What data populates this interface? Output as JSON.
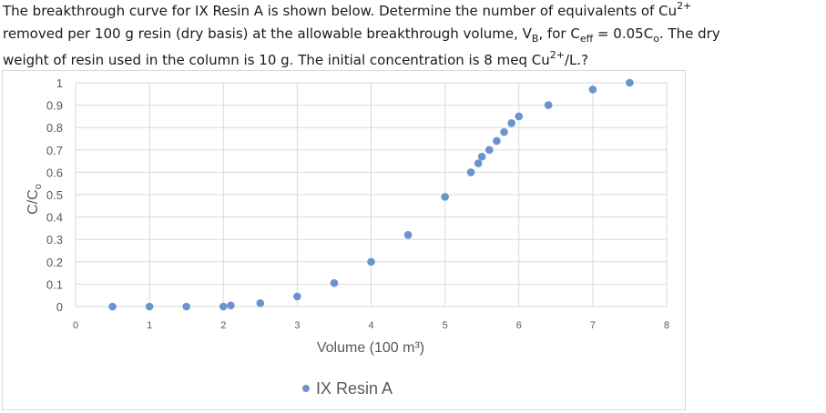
{
  "question": {
    "line1_pre": "The breakthrough curve for IX Resin A is shown below. Determine the number of equivalents of Cu",
    "line1_sup": "2+",
    "line2_pre": "removed per 100 g resin (dry basis) at the allowable breakthrough volume, V",
    "line2_sub1": "B",
    "line2_mid": ", for C",
    "line2_sub2": "eff",
    "line2_mid2": " = 0.05C",
    "line2_sub3": "o",
    "line2_post": ". The dry",
    "line3_pre": "weight of resin used in the column is 10 g. The initial concentration is 8 meq Cu",
    "line3_sup": "2+",
    "line3_post": "/L.?"
  },
  "chart_data": {
    "type": "scatter",
    "title": "",
    "xlabel": "Volume (100 m³)",
    "ylabel": "C/Co",
    "xlim": [
      0,
      8
    ],
    "ylim": [
      0,
      1
    ],
    "x_ticks": [
      "0",
      "1",
      "2",
      "3",
      "4",
      "5",
      "6",
      "7",
      "8"
    ],
    "y_ticks": [
      "0",
      "0.1",
      "0.2",
      "0.3",
      "0.4",
      "0.5",
      "0.6",
      "0.7",
      "0.8",
      "0.9",
      "1"
    ],
    "grid": true,
    "legend_position": "bottom",
    "series": [
      {
        "name": "IX Resin A",
        "color": "#6b93d0",
        "x": [
          0.5,
          1.0,
          1.5,
          2.0,
          2.1,
          2.5,
          3.0,
          3.5,
          4.0,
          4.5,
          5.0,
          5.35,
          5.45,
          5.5,
          5.6,
          5.7,
          5.8,
          5.9,
          6.0,
          6.4,
          7.0,
          7.5
        ],
        "y": [
          0.0,
          0.0,
          0.0,
          0.0,
          0.005,
          0.015,
          0.045,
          0.105,
          0.2,
          0.32,
          0.49,
          0.6,
          0.64,
          0.67,
          0.7,
          0.74,
          0.78,
          0.82,
          0.85,
          0.9,
          0.97,
          1.0
        ]
      }
    ]
  }
}
